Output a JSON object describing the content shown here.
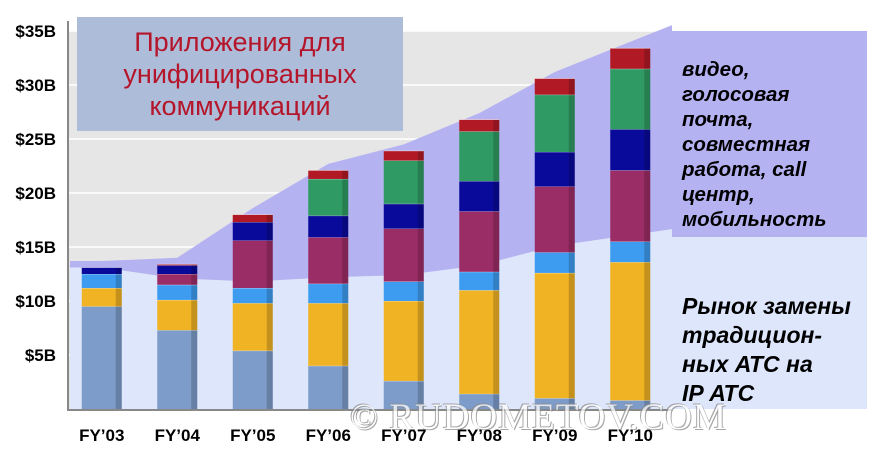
{
  "chart_data": {
    "type": "bar",
    "stacked": true,
    "categories": [
      "FY’03",
      "FY’04",
      "FY’05",
      "FY’06",
      "FY’07",
      "FY’08",
      "FY’09",
      "FY’10"
    ],
    "y_ticks": [
      "$5B",
      "$10B",
      "$15B",
      "$20B",
      "$25B",
      "$30B",
      "$35B"
    ],
    "ylim": [
      0,
      35
    ],
    "grid": true,
    "title": "Приложения для\nунифицированных\nкоммуникаций",
    "series": [
      {
        "color": "#7d9cca",
        "values": [
          9.5,
          7.3,
          5.4,
          4.0,
          2.6,
          1.4,
          1.0,
          0.8
        ]
      },
      {
        "color": "#f0b323",
        "values": [
          1.7,
          2.8,
          4.4,
          5.8,
          7.4,
          9.6,
          11.6,
          12.8
        ]
      },
      {
        "color": "#3d9bf0",
        "values": [
          1.3,
          1.4,
          1.4,
          1.8,
          1.8,
          1.7,
          1.9,
          1.9
        ]
      },
      {
        "color": "#9b2d66",
        "values": [
          0.0,
          1.0,
          4.4,
          4.3,
          4.9,
          5.6,
          6.1,
          6.6
        ]
      },
      {
        "color": "#0a0a9a",
        "values": [
          0.6,
          0.8,
          1.7,
          2.0,
          2.3,
          2.8,
          3.2,
          3.8
        ]
      },
      {
        "color": "#2f9a63",
        "values": [
          0.0,
          0.0,
          0.0,
          3.4,
          4.0,
          4.6,
          5.3,
          5.6
        ]
      },
      {
        "color": "#b11a25",
        "values": [
          0.0,
          0.1,
          0.7,
          0.8,
          0.9,
          1.1,
          1.5,
          1.9
        ]
      }
    ],
    "top_band_label": "видео,\nголосовая\nпочта,\nсовместная\nработа, call\nцентр,\nмобильность",
    "bottom_band_label": "Рынок замены\nтрадицион-\nных АТС на\nIP АТС"
  },
  "colors": {
    "plot_background": "#e6e6e6",
    "top_band": "#b5b2f2",
    "bottom_band": "#dde6fb",
    "title_box": "#adbcd8",
    "title_text": "#b4152a"
  },
  "watermark": "© RUDOMETOV.COM"
}
